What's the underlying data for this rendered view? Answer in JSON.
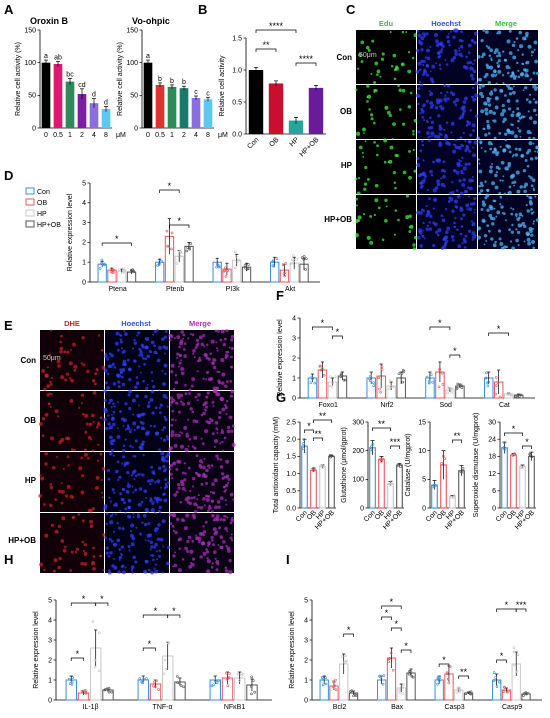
{
  "figure_labels": [
    "A",
    "B",
    "C",
    "D",
    "E",
    "F",
    "G",
    "H",
    "I"
  ],
  "colors": {
    "con": "#3a8ee0",
    "ob": "#e8575d",
    "hp": "#c8c8c8",
    "hpob": "#555555",
    "black": "#000000",
    "magenta": "#e0176e",
    "redbar": "#e03030",
    "darkred": "#c8102e",
    "purple": "#7b1fa2",
    "teal": "#26a69a",
    "purplebar": "#8a6ee0",
    "lightblue": "#5cc8f0"
  },
  "microscopy": {
    "c": {
      "headers": [
        "Edu",
        "Hoechst",
        "Merge"
      ],
      "header_colors": [
        "#38c038",
        "#3050e0",
        "#38c038"
      ],
      "rows": [
        "Con",
        "OB",
        "HP",
        "HP+OB"
      ],
      "scale": [
        "50μm"
      ]
    },
    "e": {
      "headers": [
        "DHE",
        "Hoechst",
        "Merge"
      ],
      "header_colors": [
        "#e02020",
        "#3050e0",
        "#b030b0"
      ],
      "rows": [
        "Con",
        "OB",
        "HP",
        "HP+OB"
      ],
      "scale": [
        "50μm"
      ]
    }
  },
  "chart_data": [
    {
      "id": "A1",
      "type": "bar",
      "title": "Oroxin B",
      "ylabel": "Relative cell activity (%)",
      "xlabel_unit": "μM",
      "categories": [
        "0",
        "0.5",
        "1",
        "2",
        "4",
        "8"
      ],
      "values": [
        100,
        98,
        71,
        52,
        38,
        29
      ],
      "errors": [
        4,
        4,
        5,
        8,
        7,
        4
      ],
      "letters": [
        "a",
        "ab",
        "bc",
        "cd",
        "d",
        "d"
      ],
      "ylim": [
        0,
        150
      ],
      "yticks": [
        "0",
        "50",
        "100",
        "150"
      ],
      "colors": [
        "#000000",
        "#e0176e",
        "#2e8b57",
        "#7b1fa2",
        "#8a6ee0",
        "#5cc8f0"
      ]
    },
    {
      "id": "A2",
      "type": "bar",
      "title": "Vo-ohpic",
      "ylabel": "Relative cell activity (%)",
      "xlabel_unit": "μM",
      "categories": [
        "0",
        "0.5",
        "1",
        "2",
        "4",
        "8"
      ],
      "values": [
        100,
        66,
        63,
        61,
        46,
        44
      ],
      "errors": [
        4,
        3,
        3,
        3,
        3,
        3
      ],
      "letters": [
        "a",
        "b",
        "b",
        "b",
        "c",
        "c"
      ],
      "ylim": [
        0,
        150
      ],
      "yticks": [
        "0",
        "50",
        "100",
        "150"
      ],
      "colors": [
        "#000000",
        "#e03030",
        "#2e8b57",
        "#1a7a6a",
        "#8a6ee0",
        "#5cc8f0"
      ]
    },
    {
      "id": "B",
      "type": "bar",
      "ylabel": "Relative cell activity",
      "categories": [
        "Con",
        "OB",
        "HP",
        "HP+OB"
      ],
      "values": [
        1.0,
        0.79,
        0.21,
        0.72
      ],
      "errors": [
        0.04,
        0.04,
        0.05,
        0.04
      ],
      "ylim": [
        0,
        1.5
      ],
      "yticks": [
        "0.0",
        "0.5",
        "1.0",
        "1.5"
      ],
      "colors": [
        "#000000",
        "#c8102e",
        "#26a69a",
        "#6a1b9a"
      ],
      "significance": [
        "****",
        "**",
        "****"
      ]
    },
    {
      "id": "D",
      "type": "bar",
      "ylabel": "Relative expression level",
      "categories": [
        "Ptena",
        "Ptenb",
        "PI3k",
        "Akt"
      ],
      "series": [
        {
          "name": "Con",
          "values": [
            0.9,
            1.0,
            1.0,
            1.0
          ],
          "errors": [
            0.15,
            0.15,
            0.2,
            0.25
          ]
        },
        {
          "name": "OB",
          "values": [
            0.6,
            2.3,
            0.65,
            0.6
          ],
          "errors": [
            0.1,
            0.9,
            0.3,
            0.3
          ]
        },
        {
          "name": "HP",
          "values": [
            0.55,
            1.3,
            1.1,
            0.95
          ],
          "errors": [
            0.1,
            0.3,
            0.3,
            0.3
          ]
        },
        {
          "name": "HP+OB",
          "values": [
            0.5,
            1.8,
            0.75,
            0.9
          ],
          "errors": [
            0.1,
            0.2,
            0.2,
            0.3
          ]
        }
      ],
      "ylim": [
        0,
        5
      ],
      "yticks": [
        "0",
        "1",
        "2",
        "3",
        "4",
        "5"
      ],
      "legend": [
        "Con",
        "OB",
        "HP",
        "HP+OB"
      ],
      "significance": [
        "*",
        "*",
        "*"
      ]
    },
    {
      "id": "F",
      "type": "bar",
      "ylabel": "Relative expression level",
      "categories": [
        "Foxo1",
        "Nrf2",
        "Sod",
        "Cat"
      ],
      "series": [
        {
          "name": "Con",
          "values": [
            1.0,
            1.0,
            1.0,
            1.0
          ],
          "errors": [
            0.2,
            0.3,
            0.3,
            0.3
          ]
        },
        {
          "name": "OB",
          "values": [
            1.4,
            1.1,
            1.3,
            0.8
          ],
          "errors": [
            0.4,
            0.6,
            0.5,
            0.6
          ]
        },
        {
          "name": "HP",
          "values": [
            0.8,
            0.6,
            0.4,
            0.2
          ],
          "errors": [
            0.2,
            0.2,
            0.1,
            0.05
          ]
        },
        {
          "name": "HP+OB",
          "values": [
            1.1,
            1.0,
            0.6,
            0.15
          ],
          "errors": [
            0.2,
            0.3,
            0.1,
            0.05
          ]
        }
      ],
      "ylim": [
        0,
        4
      ],
      "yticks": [
        "0",
        "1",
        "2",
        "3",
        "4"
      ],
      "significance": [
        "*",
        "*",
        "*",
        "*",
        "*"
      ]
    },
    {
      "id": "G1",
      "type": "bar",
      "ylabel": "Total antioxidant capacity (mM)",
      "categories": [
        "Con",
        "OB",
        "HP",
        "HP+OB"
      ],
      "values": [
        1.8,
        1.1,
        1.2,
        1.5
      ],
      "errors": [
        0.2,
        0.05,
        0.05,
        0.03
      ],
      "ylim": [
        0,
        2.5
      ],
      "yticks": [
        "0.0",
        "0.5",
        "1.0",
        "1.5",
        "2.0",
        "2.5"
      ],
      "significance": [
        "*",
        "**",
        "**"
      ]
    },
    {
      "id": "G2",
      "type": "bar",
      "ylabel": "Glutathione (μmol/gprot)",
      "categories": [
        "Con",
        "OB",
        "HP",
        "HP+OB"
      ],
      "values": [
        210,
        170,
        85,
        150
      ],
      "errors": [
        25,
        10,
        8,
        5
      ],
      "ylim": [
        0,
        300
      ],
      "yticks": [
        "0",
        "100",
        "200",
        "300"
      ],
      "significance": [
        "**",
        "***"
      ]
    },
    {
      "id": "G3",
      "type": "bar",
      "ylabel": "Catalase (U/mgprot)",
      "categories": [
        "Con",
        "OB",
        "HP",
        "HP+OB"
      ],
      "values": [
        4,
        7.5,
        2,
        6.5
      ],
      "errors": [
        0.8,
        2.5,
        0.2,
        0.9
      ],
      "ylim": [
        0,
        15
      ],
      "yticks": [
        "0",
        "5",
        "10",
        "15"
      ],
      "significance": [
        "**"
      ]
    },
    {
      "id": "G4",
      "type": "bar",
      "ylabel": "Superoxide dismutase (U/mgprot)",
      "categories": [
        "Con",
        "OB",
        "HP",
        "HP+OB"
      ],
      "values": [
        21,
        18.5,
        14.5,
        18
      ],
      "errors": [
        2,
        0.5,
        0.5,
        1.5
      ],
      "ylim": [
        0,
        30
      ],
      "yticks": [
        "0",
        "6",
        "12",
        "18",
        "24",
        "30"
      ],
      "significance": [
        "*",
        "*"
      ]
    },
    {
      "id": "H",
      "type": "bar",
      "ylabel": "Relative expression level",
      "categories": [
        "IL-1β",
        "TNF-α",
        "NFκB1"
      ],
      "series": [
        {
          "name": "Con",
          "values": [
            1.0,
            1.0,
            1.0
          ],
          "errors": [
            0.2,
            0.2,
            0.2
          ]
        },
        {
          "name": "OB",
          "values": [
            0.35,
            0.8,
            1.1
          ],
          "errors": [
            0.1,
            0.2,
            0.3
          ]
        },
        {
          "name": "HP",
          "values": [
            2.6,
            2.2,
            1.1
          ],
          "errors": [
            0.9,
            0.7,
            0.3
          ]
        },
        {
          "name": "HP+OB",
          "values": [
            0.5,
            0.9,
            0.75
          ],
          "errors": [
            0.1,
            0.2,
            0.3
          ]
        }
      ],
      "ylim": [
        0,
        5
      ],
      "yticks": [
        "0",
        "1",
        "2",
        "3",
        "4",
        "5"
      ],
      "significance": [
        "*",
        "*",
        "*",
        "*",
        "*",
        "*"
      ]
    },
    {
      "id": "I",
      "type": "bar",
      "ylabel": "Relative expression level",
      "categories": [
        "Bcl2",
        "Bax",
        "Casp3",
        "Casp9"
      ],
      "series": [
        {
          "name": "Con",
          "values": [
            1.0,
            1.0,
            1.0,
            1.0
          ],
          "errors": [
            0.2,
            0.2,
            0.2,
            0.3
          ]
        },
        {
          "name": "OB",
          "values": [
            0.7,
            2.1,
            1.3,
            0.5
          ],
          "errors": [
            0.2,
            0.5,
            0.4,
            0.1
          ]
        },
        {
          "name": "HP",
          "values": [
            1.8,
            0.6,
            0.5,
            1.8
          ],
          "errors": [
            0.5,
            0.2,
            0.1,
            0.6
          ]
        },
        {
          "name": "HP+OB",
          "values": [
            0.35,
            1.35,
            0.35,
            0.3
          ],
          "errors": [
            0.1,
            0.2,
            0.05,
            0.05
          ]
        }
      ],
      "ylim": [
        0,
        5
      ],
      "yticks": [
        "0",
        "1",
        "2",
        "3",
        "4",
        "5"
      ],
      "significance": [
        "*",
        "*",
        "*",
        "*",
        "*",
        "*",
        "**",
        "*",
        "*",
        "***"
      ]
    }
  ]
}
